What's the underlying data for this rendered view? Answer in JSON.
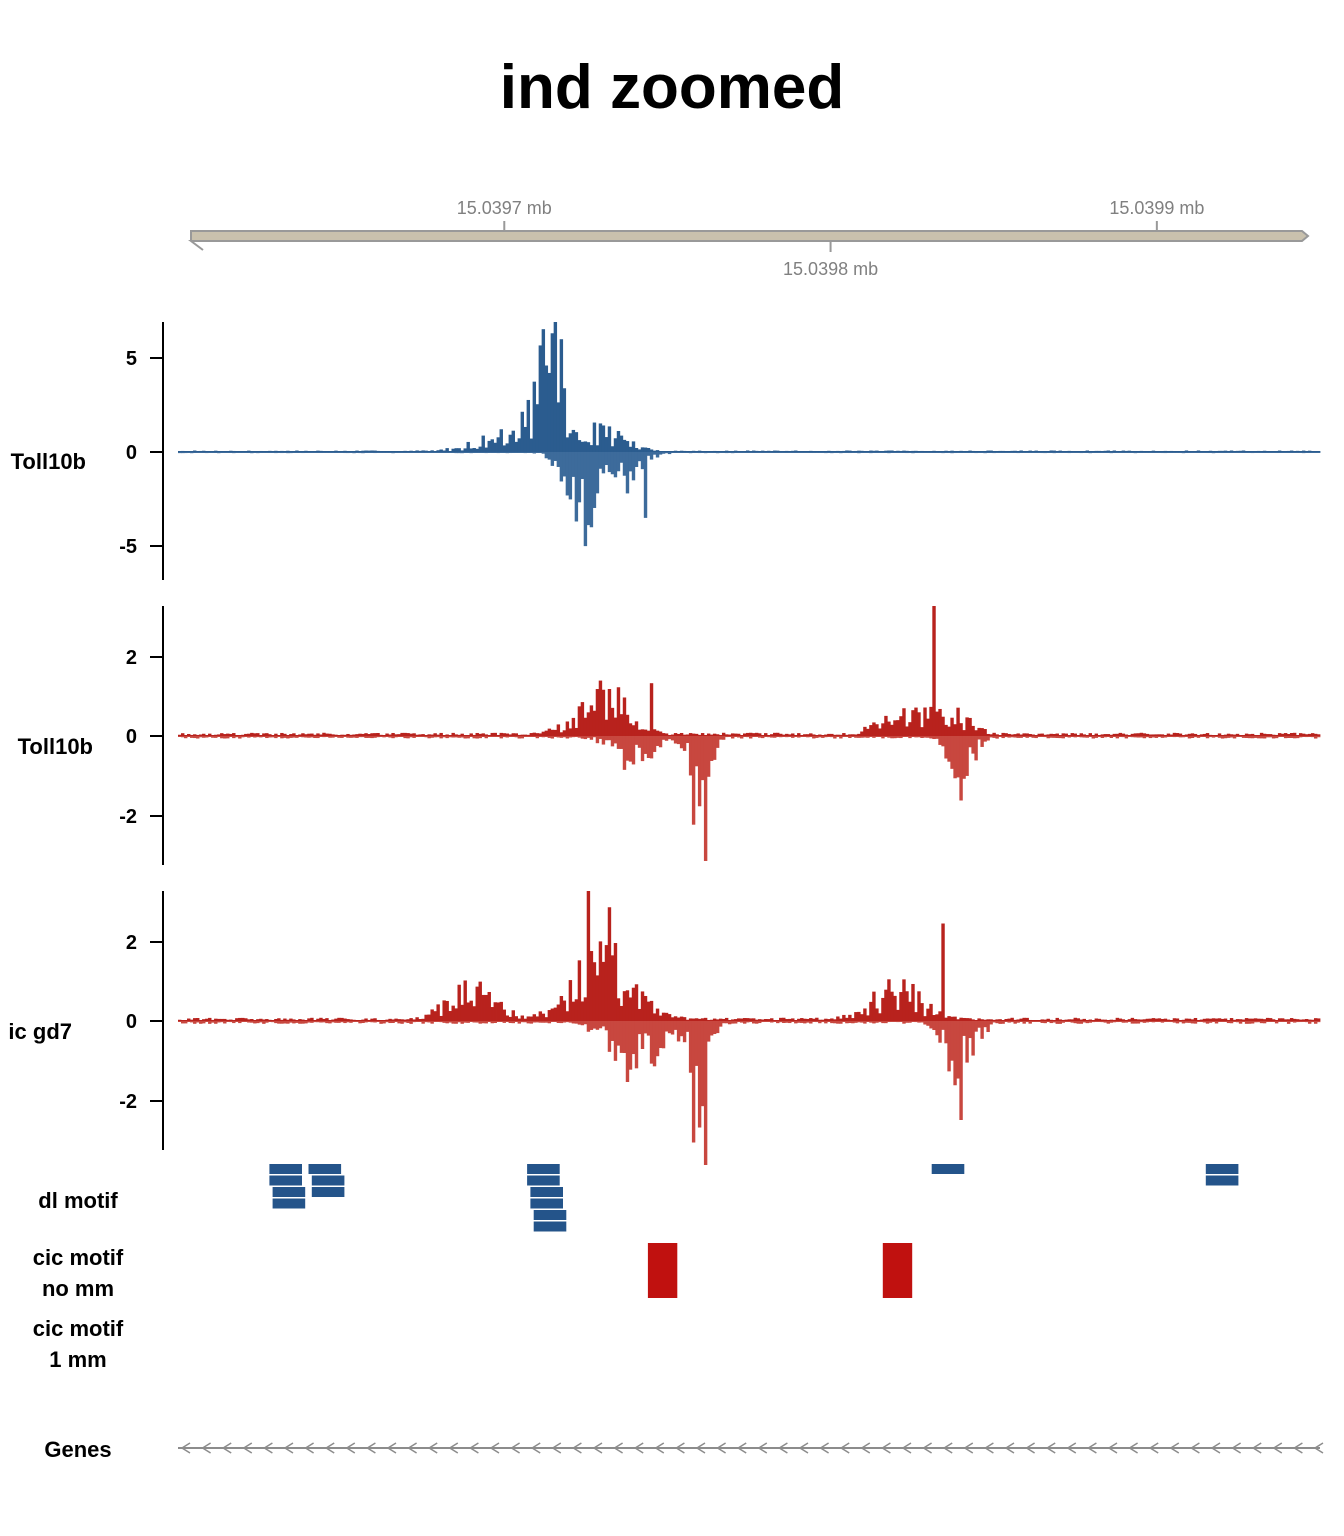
{
  "title": "ind zoomed",
  "genome_axis": {
    "ticks": [
      {
        "pos": 15.0397,
        "label": "15.0397 mb",
        "side": "above"
      },
      {
        "pos": 15.0398,
        "label": "15.0398 mb",
        "side": "below"
      },
      {
        "pos": 15.0399,
        "label": "15.0399 mb",
        "side": "above"
      }
    ],
    "bar_color": "#c9c1ad"
  },
  "tracks": {
    "t1": {
      "label": "Toll10b",
      "ticks": [
        "5",
        "0",
        "-5"
      ]
    },
    "t2": {
      "label": "Toll10b",
      "ticks": [
        "2",
        "0",
        "-2"
      ]
    },
    "t3": {
      "label": "ic gd7",
      "ticks": [
        "2",
        "0",
        "-2"
      ]
    },
    "dl": {
      "label": "dl motif"
    },
    "cic0": {
      "label_line1": "cic motif",
      "label_line2": "no mm"
    },
    "cic1": {
      "label_line1": "cic motif",
      "label_line2": "1 mm"
    },
    "genes": {
      "label": "Genes"
    }
  },
  "chart_data": [
    {
      "type": "bar",
      "name": "Toll10b",
      "xlim": [
        15.0396,
        15.03995
      ],
      "ylim": [
        -6.8,
        6.8
      ],
      "color": "#2b5c8f",
      "neg_color": "#3d6b9b",
      "peaks_pos": [
        [
          15.0397,
          0.7,
          1.2e-05
        ],
        [
          15.03971,
          1.8,
          5e-06
        ],
        [
          15.039715,
          4.0,
          4e-06
        ],
        [
          15.03973,
          1.0,
          9e-06
        ]
      ],
      "peaks_neg": [
        [
          15.03972,
          1.5,
          5e-06
        ],
        [
          15.039725,
          2.5,
          4e-06
        ],
        [
          15.039735,
          1.4,
          8e-06
        ]
      ],
      "max_pos": 6.8,
      "min_neg": -5.0,
      "spikes": [
        [
          15.039716,
          6.8
        ],
        [
          15.039717,
          5.9
        ],
        [
          15.03971,
          2.5
        ],
        [
          15.039725,
          -5.0
        ],
        [
          15.039743,
          -3.5
        ],
        [
          15.039738,
          -2.2
        ]
      ]
    },
    {
      "type": "bar",
      "name": "Toll10b",
      "xlim": [
        15.0396,
        15.03995
      ],
      "ylim": [
        -3.2,
        3.2
      ],
      "color": "#b8221d",
      "neg_color": "#c8473f",
      "peaks_pos": [
        [
          15.03973,
          0.9,
          1e-05
        ],
        [
          15.039835,
          0.7,
          8e-06
        ],
        [
          15.03982,
          0.4,
          8e-06
        ]
      ],
      "peaks_neg": [
        [
          15.03974,
          0.6,
          8e-06
        ],
        [
          15.03976,
          1.2,
          4e-06
        ],
        [
          15.03984,
          0.8,
          5e-06
        ]
      ],
      "max_pos": 3.2,
      "min_neg": -3.1,
      "spikes": [
        [
          15.039832,
          3.2
        ],
        [
          15.039762,
          -3.1
        ],
        [
          15.039758,
          -2.2
        ],
        [
          15.03984,
          -2.2
        ],
        [
          15.03984,
          -1.6
        ],
        [
          15.039745,
          1.3
        ]
      ]
    },
    {
      "type": "bar",
      "name": "ic gd7",
      "xlim": [
        15.0396,
        15.03995
      ],
      "ylim": [
        -3.2,
        3.2
      ],
      "color": "#b8221d",
      "neg_color": "#c8473f",
      "peaks_pos": [
        [
          15.03973,
          1.3,
          1.2e-05
        ],
        [
          15.03982,
          0.7,
          1e-05
        ],
        [
          15.03969,
          0.6,
          1e-05
        ]
      ],
      "peaks_neg": [
        [
          15.03974,
          0.9,
          1e-05
        ],
        [
          15.03976,
          1.6,
          4e-06
        ],
        [
          15.03984,
          1.0,
          6e-06
        ]
      ],
      "max_pos": 3.2,
      "min_neg": -3.5,
      "spikes": [
        [
          15.039726,
          3.2
        ],
        [
          15.039732,
          2.8
        ],
        [
          15.039834,
          2.4
        ],
        [
          15.039762,
          -3.5
        ],
        [
          15.039758,
          -2.7
        ],
        [
          15.03984,
          -2.2
        ]
      ]
    }
  ],
  "motifs": {
    "dl": {
      "color": "#24548a",
      "features": [
        {
          "start": 15.039628,
          "end": 15.039638,
          "row": 0
        },
        {
          "start": 15.039628,
          "end": 15.039638,
          "row": 1
        },
        {
          "start": 15.039629,
          "end": 15.039639,
          "row": 2
        },
        {
          "start": 15.039629,
          "end": 15.039639,
          "row": 3
        },
        {
          "start": 15.03964,
          "end": 15.03965,
          "row": 0
        },
        {
          "start": 15.039641,
          "end": 15.039651,
          "row": 1
        },
        {
          "start": 15.039641,
          "end": 15.039651,
          "row": 2
        },
        {
          "start": 15.039707,
          "end": 15.039717,
          "row": 0
        },
        {
          "start": 15.039707,
          "end": 15.039717,
          "row": 1
        },
        {
          "start": 15.039708,
          "end": 15.039718,
          "row": 2
        },
        {
          "start": 15.039708,
          "end": 15.039718,
          "row": 3
        },
        {
          "start": 15.039709,
          "end": 15.039719,
          "row": 4
        },
        {
          "start": 15.039709,
          "end": 15.039719,
          "row": 5
        },
        {
          "start": 15.039831,
          "end": 15.039841,
          "row": 0
        },
        {
          "start": 15.039915,
          "end": 15.039925,
          "row": 0
        },
        {
          "start": 15.039915,
          "end": 15.039925,
          "row": 1
        }
      ]
    },
    "cic_no_mm": {
      "color": "#c0110f",
      "features": [
        {
          "start": 15.039744,
          "end": 15.039753
        },
        {
          "start": 15.039816,
          "end": 15.039825
        }
      ]
    },
    "cic_1mm": {
      "color": "#c0110f",
      "features": []
    }
  },
  "genes": {
    "strand": "-",
    "color": "#8c8c8c"
  }
}
